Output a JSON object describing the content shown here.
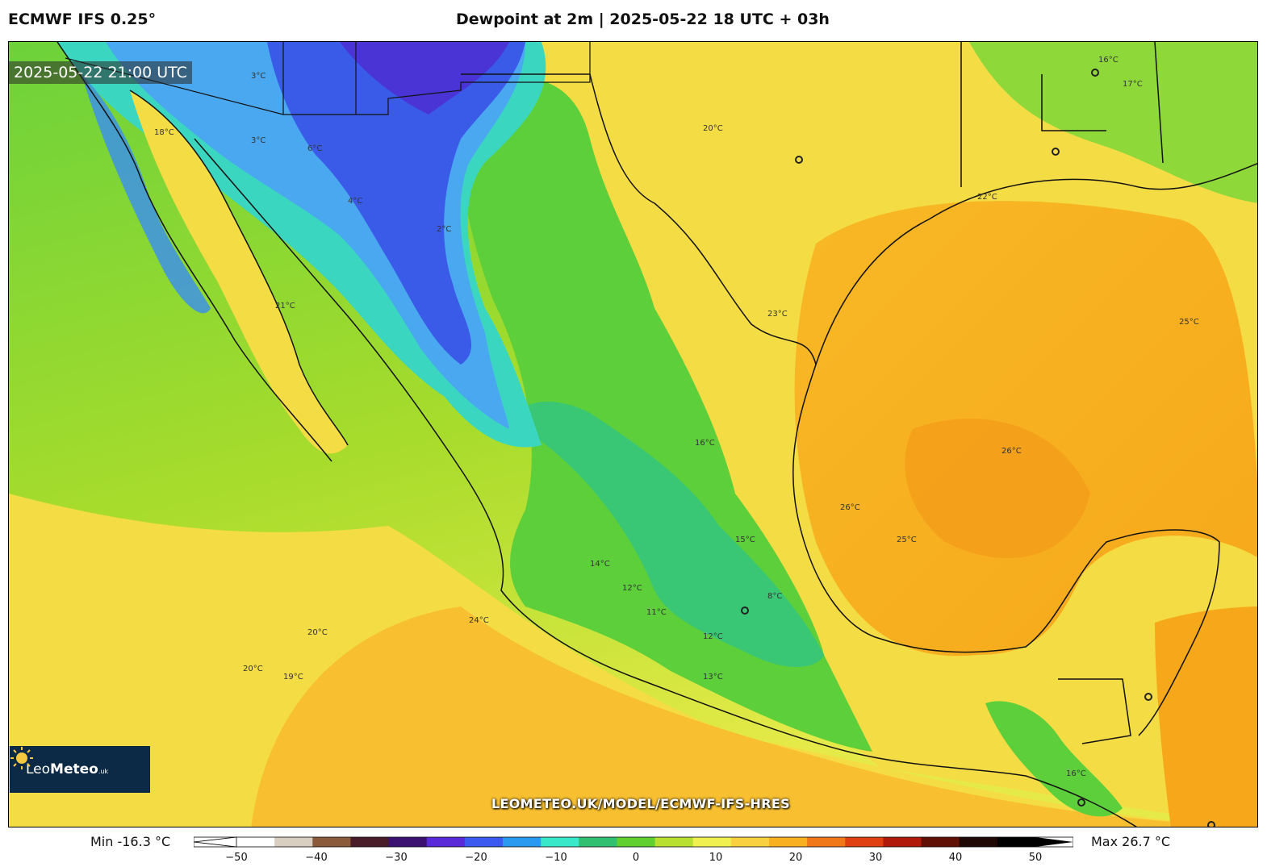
{
  "header": {
    "model": "ECMWF IFS 0.25°",
    "title": "Dewpoint at 2m | 2025-05-22 18 UTC + 03h"
  },
  "map": {
    "valid_time": "2025-05-22 21:00 UTC",
    "url_watermark": "LEOMETEO.UK/MODEL/ECMWF-IFS-HRES",
    "logo": {
      "name_light": "Leo",
      "name_bold": "Meteo",
      "suffix": ".uk",
      "icon": "sun-icon"
    },
    "contour_labels": [
      "18°C",
      "20°C",
      "21°C",
      "22°C",
      "23°C",
      "24°C",
      "25°C",
      "26°C",
      "16°C",
      "17°C",
      "13°C",
      "14°C",
      "15°C",
      "12°C",
      "11°C",
      "19°C",
      "3°C",
      "4°C",
      "2°C",
      "6°C",
      "8°C"
    ]
  },
  "colorbar": {
    "min_label": "Min -16.3 °C",
    "max_label": "Max 26.7 °C",
    "ticks": [
      "−50",
      "−40",
      "−30",
      "−20",
      "−10",
      "0",
      "10",
      "20",
      "30",
      "40",
      "50"
    ],
    "colors": [
      "#ffffff",
      "#d8cfc0",
      "#8a5a3a",
      "#4a1c2a",
      "#3b1070",
      "#5a2ad8",
      "#3a5af0",
      "#2a9af0",
      "#38e8c8",
      "#30c070",
      "#60d030",
      "#b8e030",
      "#f0f050",
      "#f8d040",
      "#f8b020",
      "#f07818",
      "#e04010",
      "#b01a08",
      "#601005",
      "#200805",
      "#000000"
    ]
  }
}
